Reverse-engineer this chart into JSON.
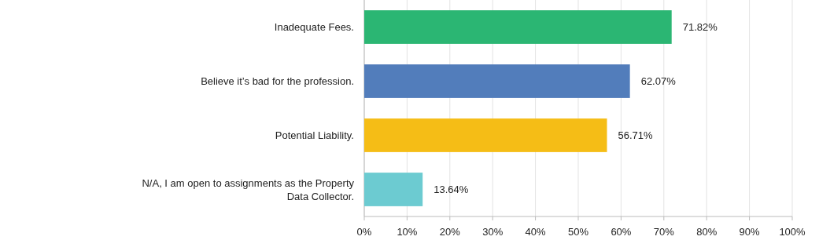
{
  "chart_data": {
    "type": "bar",
    "orientation": "horizontal",
    "categories": [
      "Inadequate Fees.",
      "Believe it’s bad for the profession.",
      "Potential Liability.",
      "N/A, I am open to assignments as the Property Data Collector."
    ],
    "values": [
      71.82,
      62.07,
      56.71,
      13.64
    ],
    "colors": [
      "#2bb673",
      "#527dbb",
      "#f5bd16",
      "#6ccbd1"
    ],
    "value_labels": [
      "71.82%",
      "62.07%",
      "56.71%",
      "13.64%"
    ],
    "xlim": [
      0,
      100
    ],
    "xticks": [
      {
        "value": 0,
        "label": "0%"
      },
      {
        "value": 10,
        "label": "10%"
      },
      {
        "value": 20,
        "label": "20%"
      },
      {
        "value": 30,
        "label": "30%"
      },
      {
        "value": 40,
        "label": "40%"
      },
      {
        "value": 50,
        "label": "50%"
      },
      {
        "value": 60,
        "label": "60%"
      },
      {
        "value": 70,
        "label": "70%"
      },
      {
        "value": 80,
        "label": "80%"
      },
      {
        "value": 90,
        "label": "90%"
      },
      {
        "value": 100,
        "label": "100%"
      }
    ],
    "grid": "x"
  }
}
